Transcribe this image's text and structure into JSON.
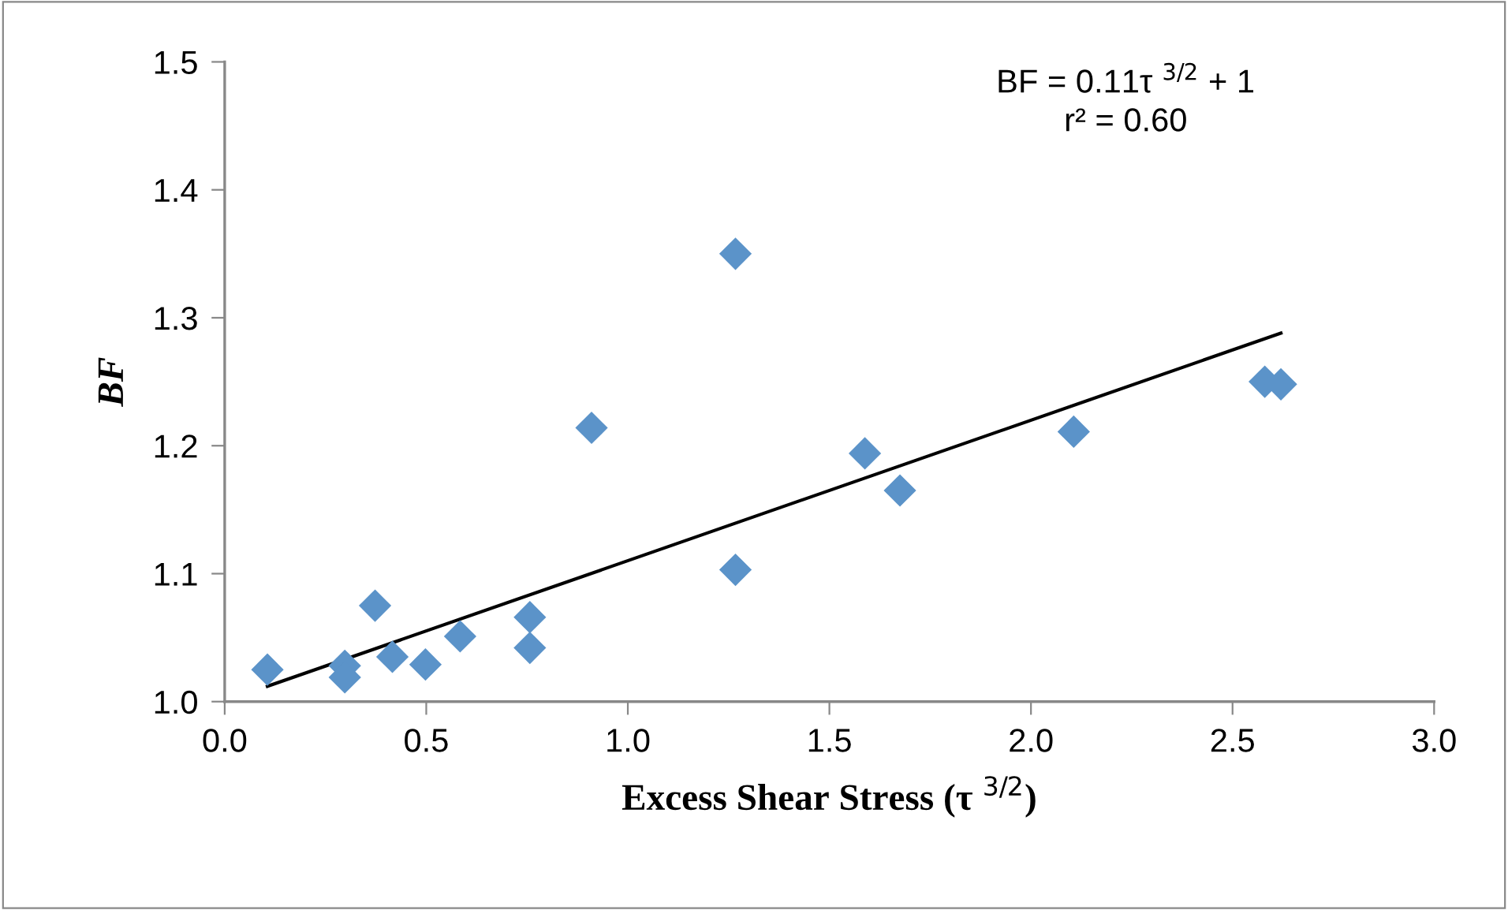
{
  "chart_data": {
    "type": "scatter",
    "xlabel": "Excess Shear Stress (τ $^{3/2}$)",
    "ylabel": "BF",
    "annotations": [
      "BF = 0.11τ $^{3/2}$ + 1",
      "r² = 0.60"
    ],
    "series": [
      {
        "color": "#5b93c9",
        "marker": "diamond",
        "x": [
          0.106,
          0.298,
          0.298,
          0.373,
          0.416,
          0.498,
          0.584,
          0.757,
          0.757,
          0.91,
          1.267,
          1.267,
          1.588,
          1.675,
          2.106,
          2.58,
          2.62
        ],
        "values": [
          1.025,
          1.028,
          1.019,
          1.075,
          1.035,
          1.029,
          1.051,
          1.066,
          1.042,
          1.214,
          1.35,
          1.103,
          1.194,
          1.165,
          1.211,
          1.25,
          1.248
        ]
      },
      {
        "type": "line",
        "color": "#000000",
        "x": [
          0.106,
          2.62
        ],
        "values": [
          1.012,
          1.288
        ]
      }
    ],
    "xlim": [
      0,
      3
    ],
    "ylim": [
      1,
      1.5
    ],
    "xticks": [
      {
        "value": 0,
        "label": "0.0"
      },
      0.5,
      {
        "value": 1,
        "label": "1.0"
      },
      1.5,
      {
        "value": 2,
        "label": "2.0"
      },
      2.5,
      {
        "value": 3,
        "label": "3.0"
      }
    ],
    "yticks": [
      {
        "value": 1,
        "label": "1.0"
      },
      1.1,
      1.2,
      1.3,
      1.4,
      1.5
    ],
    "grid": false,
    "legend": false
  }
}
